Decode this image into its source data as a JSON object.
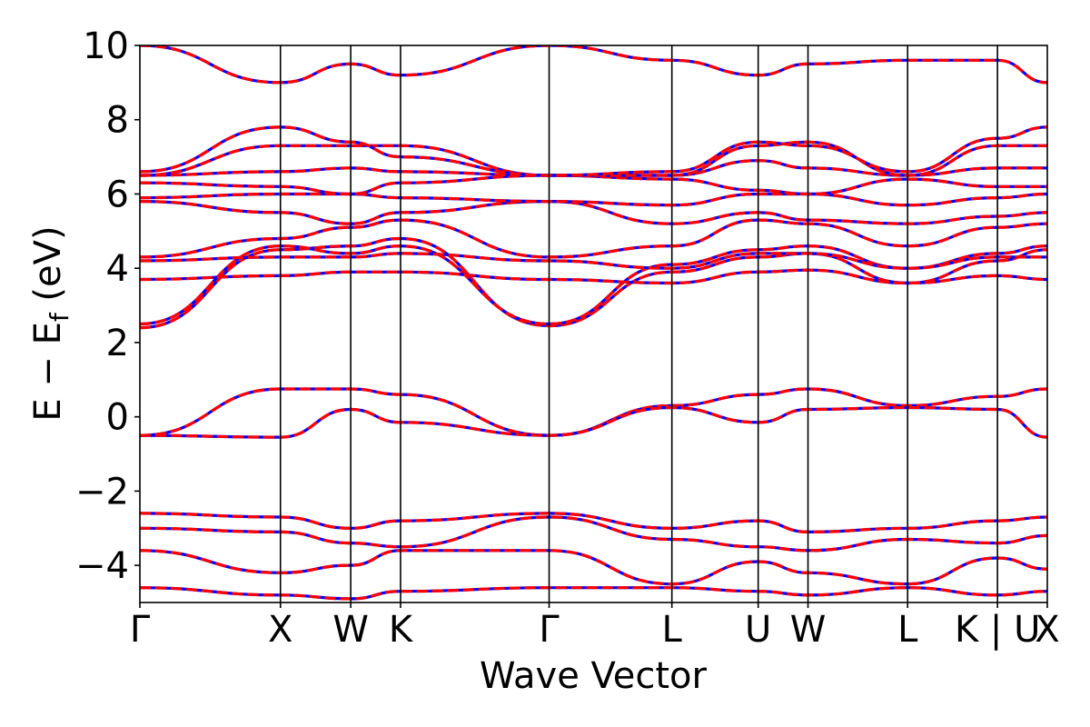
{
  "chart_data": {
    "type": "line",
    "title": "",
    "xlabel": "Wave Vector",
    "ylabel": "E − E",
    "ylabel_subscript": "f",
    "ylabel_unit": " (eV)",
    "ylim": [
      -5,
      10
    ],
    "yticks": [
      -4,
      -2,
      0,
      2,
      4,
      6,
      8,
      10
    ],
    "ytick_labels": [
      "−4",
      "−2",
      "0",
      "2",
      "4",
      "6",
      "8",
      "10"
    ],
    "xlim": [
      0,
      10.2
    ],
    "kpoints": [
      {
        "label": "Γ",
        "x": 0.0
      },
      {
        "label": "X",
        "x": 1.58
      },
      {
        "label": "W",
        "x": 2.37
      },
      {
        "label": "K",
        "x": 2.93
      },
      {
        "label": "Γ",
        "x": 4.6
      },
      {
        "label": "L",
        "x": 5.98
      },
      {
        "label": "U",
        "x": 6.95
      },
      {
        "label": "W",
        "x": 7.51
      },
      {
        "label": "L",
        "x": 8.63
      },
      {
        "label": "K | U",
        "x": 9.64
      },
      {
        "label": "X",
        "x": 10.2
      }
    ],
    "grid": false,
    "legend": "none",
    "colors": {
      "band_a": "#ff0000",
      "band_b": "#0000ff",
      "vlines": "#000000"
    },
    "bands": [
      {
        "name": "",
        "x": [
          0,
          1.58,
          2.37,
          2.93,
          4.6,
          5.98,
          6.95,
          7.51,
          8.63,
          9.64,
          10.2
        ],
        "y": [
          -0.5,
          0.75,
          0.75,
          0.6,
          -0.5,
          0.3,
          0.6,
          0.75,
          0.3,
          0.55,
          0.75
        ]
      },
      {
        "name": "",
        "x": [
          0,
          1.58,
          2.37,
          2.93,
          4.6,
          5.98,
          6.95,
          7.51,
          8.63,
          9.64,
          10.2
        ],
        "y": [
          -0.5,
          -0.55,
          0.2,
          -0.15,
          -0.5,
          0.25,
          -0.15,
          0.2,
          0.25,
          0.2,
          -0.55
        ]
      },
      {
        "name": "",
        "x": [
          0,
          1.58,
          2.37,
          2.93,
          4.6,
          5.98,
          6.95,
          7.51,
          8.63,
          9.64,
          10.2
        ],
        "y": [
          2.4,
          4.5,
          4.6,
          4.8,
          2.45,
          3.9,
          4.3,
          4.4,
          3.6,
          4.2,
          4.5
        ]
      },
      {
        "name": "",
        "x": [
          0,
          1.58,
          2.37,
          2.93,
          4.6,
          5.98,
          6.95,
          7.51,
          8.63,
          9.64,
          10.2
        ],
        "y": [
          2.5,
          4.6,
          4.4,
          4.6,
          2.5,
          4.1,
          4.5,
          4.6,
          4.0,
          4.4,
          4.6
        ]
      },
      {
        "name": "",
        "x": [
          0,
          1.58,
          2.37,
          2.93,
          4.6,
          5.98,
          6.95,
          7.51,
          8.63,
          9.64,
          10.2
        ],
        "y": [
          3.7,
          3.8,
          3.9,
          3.9,
          3.7,
          3.6,
          3.9,
          3.95,
          3.6,
          3.8,
          3.7
        ]
      },
      {
        "name": "",
        "x": [
          0,
          1.58,
          2.37,
          2.93,
          4.6,
          5.98,
          6.95,
          7.51,
          8.63,
          9.64,
          10.2
        ],
        "y": [
          4.2,
          4.3,
          4.3,
          4.4,
          4.2,
          4.0,
          4.4,
          4.4,
          4.0,
          4.3,
          4.3
        ]
      },
      {
        "name": "",
        "x": [
          0,
          1.58,
          2.37,
          2.93,
          4.6,
          5.98,
          6.95,
          7.51,
          8.63,
          9.64,
          10.2
        ],
        "y": [
          4.3,
          4.8,
          5.1,
          5.3,
          4.3,
          4.6,
          5.3,
          5.2,
          4.6,
          5.1,
          5.2
        ]
      },
      {
        "name": "",
        "x": [
          0,
          1.58,
          2.37,
          2.93,
          4.6,
          5.98,
          6.95,
          7.51,
          8.63,
          9.64,
          10.2
        ],
        "y": [
          5.8,
          5.5,
          5.2,
          5.5,
          5.8,
          5.2,
          5.5,
          5.3,
          5.2,
          5.4,
          5.5
        ]
      },
      {
        "name": "",
        "x": [
          0,
          1.58,
          2.37,
          2.93,
          4.6,
          5.98,
          6.95,
          7.51,
          8.63,
          9.64,
          10.2
        ],
        "y": [
          5.9,
          6.0,
          6.0,
          5.9,
          5.8,
          5.7,
          6.0,
          6.0,
          5.7,
          5.9,
          6.0
        ]
      },
      {
        "name": "",
        "x": [
          0,
          1.58,
          2.37,
          2.93,
          4.6,
          5.98,
          6.95,
          7.51,
          8.63,
          9.64,
          10.2
        ],
        "y": [
          6.3,
          6.2,
          6.0,
          6.3,
          6.5,
          6.4,
          6.1,
          6.0,
          6.4,
          6.2,
          6.2
        ]
      },
      {
        "name": "",
        "x": [
          0,
          1.58,
          2.37,
          2.93,
          4.6,
          5.98,
          6.95,
          7.51,
          8.63,
          9.64,
          10.2
        ],
        "y": [
          6.5,
          6.6,
          6.7,
          6.6,
          6.5,
          6.5,
          6.9,
          6.7,
          6.5,
          6.7,
          6.7
        ]
      },
      {
        "name": "",
        "x": [
          0,
          1.58,
          2.37,
          2.93,
          4.6,
          5.98,
          6.95,
          7.51,
          8.63,
          9.64,
          10.2
        ],
        "y": [
          6.5,
          7.3,
          7.3,
          7.3,
          6.5,
          6.5,
          7.3,
          7.4,
          6.5,
          7.3,
          7.3
        ]
      },
      {
        "name": "",
        "x": [
          0,
          1.58,
          2.37,
          2.93,
          4.6,
          5.98,
          6.95,
          7.51,
          8.63,
          9.64,
          10.2
        ],
        "y": [
          6.6,
          7.8,
          7.4,
          7.0,
          6.5,
          6.6,
          7.4,
          7.3,
          6.6,
          7.5,
          7.8
        ]
      },
      {
        "name": "",
        "x": [
          0,
          1.58,
          2.37,
          2.93,
          4.6,
          5.98,
          6.95,
          7.51,
          8.63,
          9.64,
          10.2
        ],
        "y": [
          10.0,
          9.0,
          9.5,
          9.2,
          10.0,
          9.6,
          9.2,
          9.5,
          9.6,
          9.6,
          9.0
        ]
      },
      {
        "name": "",
        "x": [
          0,
          1.58,
          2.37,
          2.93,
          4.6,
          5.98,
          6.95,
          7.51,
          8.63,
          9.64,
          10.2
        ],
        "y": [
          -2.6,
          -2.7,
          -3.0,
          -2.8,
          -2.6,
          -3.0,
          -2.8,
          -3.1,
          -3.0,
          -2.8,
          -2.7
        ]
      },
      {
        "name": "",
        "x": [
          0,
          1.58,
          2.37,
          2.93,
          4.6,
          5.98,
          6.95,
          7.51,
          8.63,
          9.64,
          10.2
        ],
        "y": [
          -3.0,
          -3.1,
          -3.4,
          -3.5,
          -2.7,
          -3.3,
          -3.5,
          -3.6,
          -3.3,
          -3.4,
          -3.2
        ]
      },
      {
        "name": "",
        "x": [
          0,
          1.58,
          2.37,
          2.93,
          4.6,
          5.98,
          6.95,
          7.51,
          8.63,
          9.64,
          10.2
        ],
        "y": [
          -3.6,
          -4.2,
          -4.0,
          -3.6,
          -3.6,
          -4.5,
          -3.9,
          -4.2,
          -4.5,
          -3.8,
          -4.1
        ]
      },
      {
        "name": "",
        "x": [
          0,
          1.58,
          2.37,
          2.93,
          4.6,
          5.98,
          6.95,
          7.51,
          8.63,
          9.64,
          10.2
        ],
        "y": [
          -4.6,
          -4.8,
          -4.9,
          -4.7,
          -4.6,
          -4.6,
          -4.7,
          -4.8,
          -4.6,
          -4.8,
          -4.7
        ]
      }
    ]
  }
}
